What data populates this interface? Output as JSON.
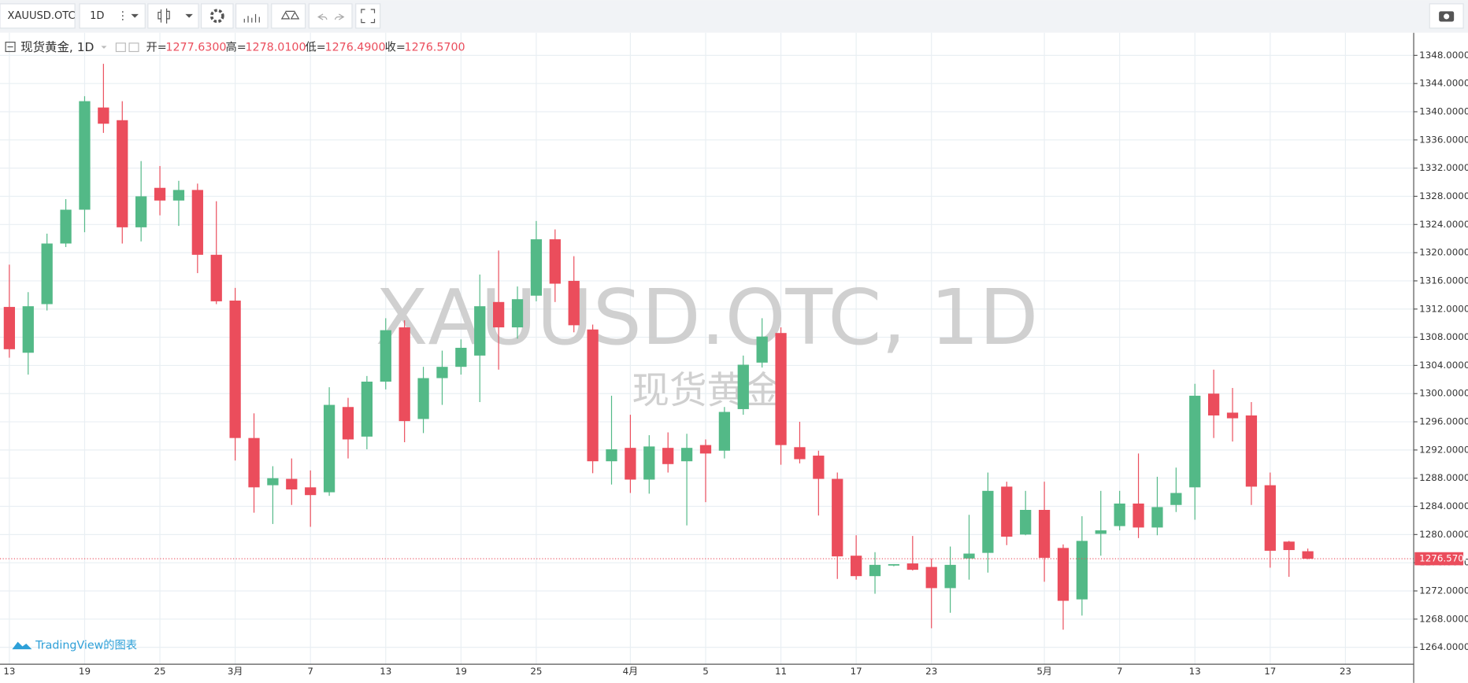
{
  "toolbar": {
    "symbol": "XAUUSD.OTC",
    "interval": "1D"
  },
  "branding": "TradingView的图表",
  "chart_data": {
    "type": "candlestick",
    "symbol_title": "现货黄金, 1D",
    "watermark_symbol": "XAUUSD.OTC, 1D",
    "watermark_name": "现货黄金",
    "ohlc_legend": [
      {
        "label": "开=",
        "value": "1277.6300"
      },
      {
        "label": "高=",
        "value": "1278.0100"
      },
      {
        "label": "低=",
        "value": "1276.4900"
      },
      {
        "label": "收=",
        "value": "1276.5700"
      }
    ],
    "categories": [
      "13",
      null,
      null,
      null,
      "19",
      null,
      null,
      null,
      "25",
      null,
      null,
      null,
      "3月",
      null,
      null,
      null,
      "7",
      null,
      null,
      null,
      "13",
      null,
      null,
      null,
      "19",
      null,
      null,
      null,
      "25",
      null,
      null,
      null,
      null,
      "4月",
      null,
      null,
      null,
      "5",
      null,
      null,
      null,
      "11",
      null,
      null,
      null,
      "17",
      null,
      null,
      null,
      "23",
      null,
      null,
      null,
      null,
      null,
      "5月",
      null,
      null,
      null,
      "7",
      null,
      null,
      null,
      "13",
      null,
      null,
      null,
      "17",
      null,
      null,
      null,
      "23"
    ],
    "open": [
      1312.3,
      1305.8,
      1312.7,
      1321.3,
      1326.1,
      1340.6,
      1338.8,
      1323.6,
      1329.2,
      1327.4,
      1328.9,
      1319.7,
      1313.2,
      1293.7,
      1287.0,
      1287.9,
      1286.7,
      1286.0,
      1298.1,
      1293.9,
      1301.7,
      1309.4,
      1296.4,
      1302.2,
      1303.8,
      1305.4,
      1313.0,
      1309.4,
      1313.9,
      1321.9,
      1316.0,
      1309.1,
      1290.4,
      1292.3,
      1287.8,
      1292.3,
      1290.4,
      1292.7,
      1291.9,
      1297.8,
      1304.4,
      1308.6,
      1292.4,
      1291.2,
      1287.9,
      1277.0,
      1274.1,
      1275.6,
      1275.9,
      1275.4,
      1272.4,
      1276.6,
      1277.4,
      1286.8,
      1280.0,
      1283.5,
      1278.1,
      1270.8,
      1280.1,
      1281.2,
      1284.4,
      1281.0,
      1284.2,
      1286.7,
      1300.0,
      1297.3,
      1296.9,
      1287.0,
      1279.0,
      1277.63,
      null,
      null
    ],
    "high": [
      1318.3,
      1314.4,
      1322.7,
      1327.6,
      1342.2,
      1346.8,
      1341.5,
      1333.0,
      1332.3,
      1330.2,
      1329.8,
      1327.3,
      1315.0,
      1297.2,
      1289.7,
      1290.8,
      1289.1,
      1300.9,
      1299.4,
      1302.5,
      1310.7,
      1310.4,
      1303.8,
      1306.1,
      1307.7,
      1316.9,
      1320.3,
      1315.2,
      1324.5,
      1323.3,
      1319.5,
      1309.8,
      1299.7,
      1297.0,
      1294.1,
      1294.5,
      1294.3,
      1293.5,
      1298.1,
      1305.4,
      1310.7,
      1309.4,
      1296.0,
      1291.9,
      1288.8,
      1279.9,
      1277.5,
      1275.8,
      1279.8,
      1276.6,
      1278.3,
      1282.8,
      1288.8,
      1287.5,
      1286.2,
      1287.5,
      1278.6,
      1282.6,
      1286.2,
      1286.2,
      1291.5,
      1288.2,
      1289.5,
      1301.4,
      1303.4,
      1300.8,
      1298.8,
      1288.8,
      1279.1,
      1278.01,
      null,
      null
    ],
    "low": [
      1305.1,
      1302.7,
      1311.8,
      1320.8,
      1322.9,
      1337.0,
      1321.3,
      1321.6,
      1325.3,
      1323.8,
      1317.1,
      1312.7,
      1290.5,
      1283.1,
      1281.5,
      1284.2,
      1281.1,
      1285.5,
      1290.8,
      1292.1,
      1300.6,
      1293.1,
      1294.4,
      1298.4,
      1302.7,
      1298.8,
      1303.4,
      1307.8,
      1313.1,
      1313.0,
      1308.7,
      1288.7,
      1287.1,
      1285.9,
      1285.8,
      1288.8,
      1281.3,
      1284.6,
      1290.8,
      1297.0,
      1303.7,
      1289.9,
      1290.1,
      1282.7,
      1273.7,
      1273.6,
      1271.6,
      1275.5,
      1274.9,
      1266.7,
      1268.9,
      1273.6,
      1274.6,
      1278.5,
      1279.9,
      1273.3,
      1266.5,
      1268.5,
      1277.0,
      1280.6,
      1279.5,
      1279.9,
      1283.2,
      1282.1,
      1293.7,
      1293.2,
      1284.2,
      1275.3,
      1274.0,
      1276.49,
      null,
      null
    ],
    "close": [
      1306.3,
      1312.4,
      1321.3,
      1326.1,
      1341.5,
      1338.3,
      1323.6,
      1328.0,
      1327.4,
      1328.9,
      1319.7,
      1313.1,
      1293.7,
      1286.7,
      1288.0,
      1286.4,
      1285.6,
      1298.4,
      1293.5,
      1301.7,
      1309.0,
      1296.1,
      1302.2,
      1303.8,
      1306.5,
      1312.4,
      1309.4,
      1313.4,
      1321.9,
      1315.6,
      1309.7,
      1290.4,
      1292.1,
      1287.8,
      1292.5,
      1290.0,
      1292.3,
      1291.5,
      1297.4,
      1304.1,
      1308.1,
      1292.7,
      1290.7,
      1287.9,
      1276.9,
      1274.1,
      1275.7,
      1275.8,
      1275.0,
      1272.4,
      1275.7,
      1277.3,
      1286.2,
      1279.7,
      1283.5,
      1276.7,
      1270.6,
      1279.1,
      1280.6,
      1284.4,
      1281.0,
      1283.9,
      1285.9,
      1299.7,
      1296.9,
      1296.5,
      1286.8,
      1277.7,
      1277.8,
      1276.57,
      null,
      null
    ],
    "up_color": "#53b987",
    "down_color": "#eb4d5c",
    "ylim": [
      1261.6,
      1351.2
    ],
    "yticks": [
      {
        "value": 1264,
        "label": "1264.0000"
      },
      {
        "value": 1268,
        "label": "1268.0000"
      },
      {
        "value": 1272,
        "label": "1272.0000"
      },
      {
        "value": 1276,
        "label": "1276.0000"
      },
      {
        "value": 1280,
        "label": "1280.0000"
      },
      {
        "value": 1284,
        "label": "1284.0000"
      },
      {
        "value": 1288,
        "label": "1288.0000"
      },
      {
        "value": 1292,
        "label": "1292.0000"
      },
      {
        "value": 1296,
        "label": "1296.0000"
      },
      {
        "value": 1300,
        "label": "1300.0000"
      },
      {
        "value": 1304,
        "label": "1304.0000"
      },
      {
        "value": 1308,
        "label": "1308.0000"
      },
      {
        "value": 1312,
        "label": "1312.0000"
      },
      {
        "value": 1316,
        "label": "1316.0000"
      },
      {
        "value": 1320,
        "label": "1320.0000"
      },
      {
        "value": 1324,
        "label": "1324.0000"
      },
      {
        "value": 1328,
        "label": "1328.0000"
      },
      {
        "value": 1332,
        "label": "1332.0000"
      },
      {
        "value": 1336,
        "label": "1336.0000"
      },
      {
        "value": 1340,
        "label": "1340.0000"
      },
      {
        "value": 1344,
        "label": "1344.0000"
      },
      {
        "value": 1348,
        "label": "1348.0000"
      }
    ],
    "last_price": {
      "value": 1276.57,
      "label": "1276.5700"
    },
    "grid": true
  }
}
